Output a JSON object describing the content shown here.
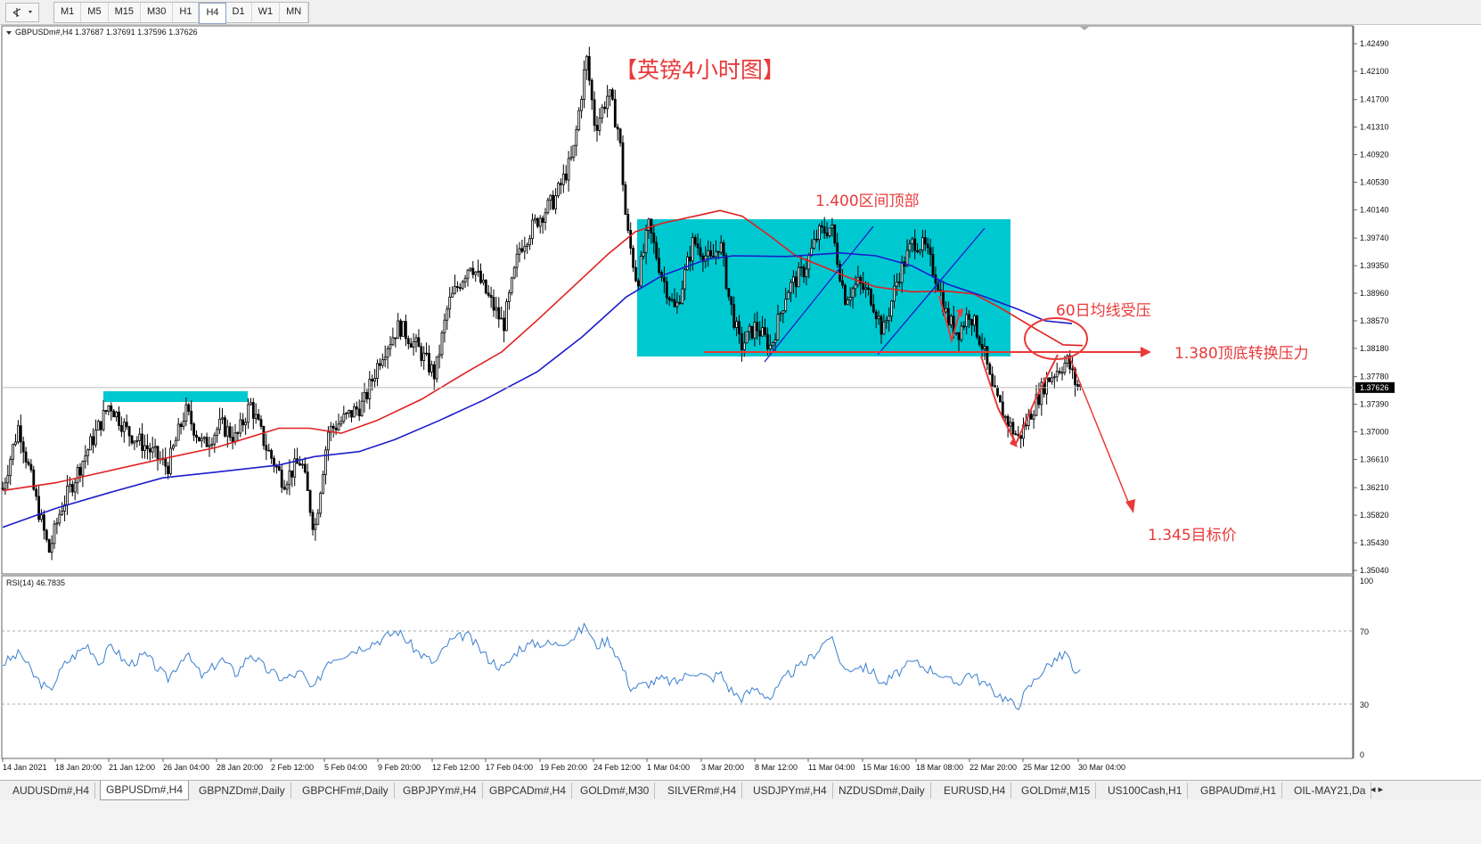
{
  "toolbar": {
    "timeframes": [
      "M1",
      "M5",
      "M15",
      "M30",
      "H1",
      "H4",
      "D1",
      "W1",
      "MN"
    ],
    "active": "H4"
  },
  "colors": {
    "candle": "#000000",
    "ma_red": "#e0201f",
    "ma_blue": "#1c1ccc",
    "box": "#00c8d0",
    "annotation_red": "#e83a3a",
    "trend_blue": "#1c1ccc",
    "rsi_line": "#3a7fd0",
    "current_price_bg": "#000000"
  },
  "header": {
    "symbol_info": "GBPUSDm#,H4  1.37687 1.37691 1.37596 1.37626"
  },
  "annotations": {
    "title": "【英镑4小时图】",
    "top_label": "1.400区间顶部",
    "ma_label": "60日均线受压",
    "resistance_label": "1.380顶底转换压力",
    "target_label": "1.345目标价"
  },
  "price_axis": {
    "labels": [
      "1.42490",
      "1.42100",
      "1.41700",
      "1.41310",
      "1.40920",
      "1.40530",
      "1.40140",
      "1.39740",
      "1.39350",
      "1.38960",
      "1.38570",
      "1.38180",
      "1.37780",
      "1.37390",
      "1.37000",
      "1.36610",
      "1.36210",
      "1.35820",
      "1.35430",
      "1.35040"
    ],
    "current_price": "1.37626"
  },
  "rsi": {
    "label": "RSI(14) 46.7835",
    "levels": [
      "100",
      "70",
      "30",
      "0"
    ]
  },
  "time_axis": {
    "labels": [
      "14 Jan 2021",
      "18 Jan 20:00",
      "21 Jan 12:00",
      "26 Jan 04:00",
      "28 Jan 20:00",
      "2 Feb 12:00",
      "5 Feb 04:00",
      "9 Feb 20:00",
      "12 Feb 12:00",
      "17 Feb 04:00",
      "19 Feb 20:00",
      "24 Feb 12:00",
      "1 Mar 04:00",
      "3 Mar 20:00",
      "8 Mar 12:00",
      "11 Mar 04:00",
      "15 Mar 16:00",
      "18 Mar 08:00",
      "22 Mar 20:00",
      "25 Mar 12:00",
      "30 Mar 04:00"
    ]
  },
  "tabs": {
    "items": [
      "AUDUSDm#,H4",
      "GBPUSDm#,H4",
      "GBPNZDm#,Daily",
      "GBPCHFm#,Daily",
      "GBPJPYm#,H4",
      "GBPCADm#,H4",
      "GOLDm#,M30",
      "SILVERm#,H4",
      "USDJPYm#,H4",
      "NZDUSDm#,Daily",
      "EURUSD,H4",
      "GOLDm#,M15",
      "US100Cash,H1",
      "GBPAUDm#,H1",
      "OIL-MAY21,Da"
    ],
    "active": "GBPUSDm#,H4"
  },
  "chart_data": {
    "type": "candlestick",
    "symbol": "GBPUSDm#",
    "timeframe": "H4",
    "last_bar": {
      "open": 1.37687,
      "high": 1.37691,
      "low": 1.37596,
      "close": 1.37626
    },
    "ylim": [
      1.3504,
      1.4249
    ],
    "path_keypoints": [
      {
        "x": 0,
        "price": 1.362
      },
      {
        "x": 18,
        "price": 1.371
      },
      {
        "x": 38,
        "price": 1.36
      },
      {
        "x": 52,
        "price": 1.353
      },
      {
        "x": 65,
        "price": 1.359
      },
      {
        "x": 90,
        "price": 1.366
      },
      {
        "x": 120,
        "price": 1.374
      },
      {
        "x": 140,
        "price": 1.37
      },
      {
        "x": 160,
        "price": 1.368
      },
      {
        "x": 185,
        "price": 1.365
      },
      {
        "x": 205,
        "price": 1.373
      },
      {
        "x": 225,
        "price": 1.368
      },
      {
        "x": 245,
        "price": 1.371
      },
      {
        "x": 262,
        "price": 1.369
      },
      {
        "x": 278,
        "price": 1.374
      },
      {
        "x": 295,
        "price": 1.368
      },
      {
        "x": 315,
        "price": 1.363
      },
      {
        "x": 335,
        "price": 1.366
      },
      {
        "x": 350,
        "price": 1.356
      },
      {
        "x": 365,
        "price": 1.37
      },
      {
        "x": 385,
        "price": 1.372
      },
      {
        "x": 405,
        "price": 1.374
      },
      {
        "x": 425,
        "price": 1.381
      },
      {
        "x": 445,
        "price": 1.385
      },
      {
        "x": 465,
        "price": 1.382
      },
      {
        "x": 485,
        "price": 1.378
      },
      {
        "x": 500,
        "price": 1.388
      },
      {
        "x": 525,
        "price": 1.394
      },
      {
        "x": 545,
        "price": 1.389
      },
      {
        "x": 562,
        "price": 1.385
      },
      {
        "x": 580,
        "price": 1.396
      },
      {
        "x": 600,
        "price": 1.4
      },
      {
        "x": 620,
        "price": 1.403
      },
      {
        "x": 640,
        "price": 1.409
      },
      {
        "x": 655,
        "price": 1.423
      },
      {
        "x": 665,
        "price": 1.413
      },
      {
        "x": 680,
        "price": 1.418
      },
      {
        "x": 692,
        "price": 1.412
      },
      {
        "x": 700,
        "price": 1.399
      },
      {
        "x": 712,
        "price": 1.391
      },
      {
        "x": 725,
        "price": 1.399
      },
      {
        "x": 740,
        "price": 1.392
      },
      {
        "x": 755,
        "price": 1.387
      },
      {
        "x": 775,
        "price": 1.397
      },
      {
        "x": 795,
        "price": 1.394
      },
      {
        "x": 805,
        "price": 1.397
      },
      {
        "x": 815,
        "price": 1.389
      },
      {
        "x": 828,
        "price": 1.382
      },
      {
        "x": 845,
        "price": 1.385
      },
      {
        "x": 862,
        "price": 1.382
      },
      {
        "x": 880,
        "price": 1.39
      },
      {
        "x": 900,
        "price": 1.393
      },
      {
        "x": 915,
        "price": 1.398
      },
      {
        "x": 930,
        "price": 1.399
      },
      {
        "x": 945,
        "price": 1.389
      },
      {
        "x": 960,
        "price": 1.391
      },
      {
        "x": 975,
        "price": 1.389
      },
      {
        "x": 988,
        "price": 1.384
      },
      {
        "x": 1005,
        "price": 1.392
      },
      {
        "x": 1022,
        "price": 1.397
      },
      {
        "x": 1035,
        "price": 1.396
      },
      {
        "x": 1050,
        "price": 1.391
      },
      {
        "x": 1060,
        "price": 1.386
      },
      {
        "x": 1072,
        "price": 1.384
      },
      {
        "x": 1085,
        "price": 1.387
      },
      {
        "x": 1100,
        "price": 1.382
      },
      {
        "x": 1110,
        "price": 1.376
      },
      {
        "x": 1125,
        "price": 1.372
      },
      {
        "x": 1140,
        "price": 1.369
      },
      {
        "x": 1155,
        "price": 1.373
      },
      {
        "x": 1170,
        "price": 1.377
      },
      {
        "x": 1185,
        "price": 1.379
      },
      {
        "x": 1195,
        "price": 1.38
      },
      {
        "x": 1205,
        "price": 1.3765
      },
      {
        "x": 1212,
        "price": 1.3763
      }
    ],
    "ma_red": [
      {
        "x": 0,
        "price": 1.3617
      },
      {
        "x": 60,
        "price": 1.3628
      },
      {
        "x": 120,
        "price": 1.3645
      },
      {
        "x": 180,
        "price": 1.3662
      },
      {
        "x": 240,
        "price": 1.3678
      },
      {
        "x": 310,
        "price": 1.3705
      },
      {
        "x": 345,
        "price": 1.3705
      },
      {
        "x": 380,
        "price": 1.3698
      },
      {
        "x": 420,
        "price": 1.3716
      },
      {
        "x": 470,
        "price": 1.3746
      },
      {
        "x": 520,
        "price": 1.3784
      },
      {
        "x": 560,
        "price": 1.3813
      },
      {
        "x": 600,
        "price": 1.3858
      },
      {
        "x": 640,
        "price": 1.3905
      },
      {
        "x": 680,
        "price": 1.3952
      },
      {
        "x": 710,
        "price": 1.3983
      },
      {
        "x": 740,
        "price": 1.3995
      },
      {
        "x": 780,
        "price": 1.4006
      },
      {
        "x": 805,
        "price": 1.4013
      },
      {
        "x": 830,
        "price": 1.4005
      },
      {
        "x": 860,
        "price": 1.3978
      },
      {
        "x": 890,
        "price": 1.3949
      },
      {
        "x": 920,
        "price": 1.3934
      },
      {
        "x": 950,
        "price": 1.3918
      },
      {
        "x": 980,
        "price": 1.3905
      },
      {
        "x": 1020,
        "price": 1.3898
      },
      {
        "x": 1060,
        "price": 1.3899
      },
      {
        "x": 1090,
        "price": 1.3895
      },
      {
        "x": 1120,
        "price": 1.3875
      },
      {
        "x": 1160,
        "price": 1.3845
      },
      {
        "x": 1190,
        "price": 1.3823
      },
      {
        "x": 1212,
        "price": 1.3822
      }
    ],
    "ma_blue": [
      {
        "x": 0,
        "price": 1.3565
      },
      {
        "x": 60,
        "price": 1.3592
      },
      {
        "x": 120,
        "price": 1.3614
      },
      {
        "x": 180,
        "price": 1.3635
      },
      {
        "x": 240,
        "price": 1.3643
      },
      {
        "x": 310,
        "price": 1.3653
      },
      {
        "x": 350,
        "price": 1.3665
      },
      {
        "x": 400,
        "price": 1.3672
      },
      {
        "x": 440,
        "price": 1.3689
      },
      {
        "x": 490,
        "price": 1.3716
      },
      {
        "x": 540,
        "price": 1.3745
      },
      {
        "x": 600,
        "price": 1.3785
      },
      {
        "x": 650,
        "price": 1.3834
      },
      {
        "x": 700,
        "price": 1.3891
      },
      {
        "x": 740,
        "price": 1.3921
      },
      {
        "x": 790,
        "price": 1.3944
      },
      {
        "x": 820,
        "price": 1.3949
      },
      {
        "x": 880,
        "price": 1.3948
      },
      {
        "x": 940,
        "price": 1.3953
      },
      {
        "x": 980,
        "price": 1.3949
      },
      {
        "x": 1020,
        "price": 1.3935
      },
      {
        "x": 1060,
        "price": 1.3909
      },
      {
        "x": 1100,
        "price": 1.3892
      },
      {
        "x": 1140,
        "price": 1.3873
      },
      {
        "x": 1170,
        "price": 1.3857
      },
      {
        "x": 1200,
        "price": 1.3853
      }
    ],
    "rsi_keypoints": [
      {
        "x": 0,
        "v": 52
      },
      {
        "x": 20,
        "v": 58
      },
      {
        "x": 35,
        "v": 45
      },
      {
        "x": 52,
        "v": 36
      },
      {
        "x": 70,
        "v": 52
      },
      {
        "x": 95,
        "v": 63
      },
      {
        "x": 110,
        "v": 52
      },
      {
        "x": 122,
        "v": 63
      },
      {
        "x": 140,
        "v": 51
      },
      {
        "x": 160,
        "v": 57
      },
      {
        "x": 185,
        "v": 43
      },
      {
        "x": 205,
        "v": 58
      },
      {
        "x": 225,
        "v": 44
      },
      {
        "x": 245,
        "v": 55
      },
      {
        "x": 262,
        "v": 46
      },
      {
        "x": 278,
        "v": 58
      },
      {
        "x": 295,
        "v": 49
      },
      {
        "x": 315,
        "v": 43
      },
      {
        "x": 335,
        "v": 47
      },
      {
        "x": 348,
        "v": 36
      },
      {
        "x": 365,
        "v": 54
      },
      {
        "x": 385,
        "v": 58
      },
      {
        "x": 405,
        "v": 62
      },
      {
        "x": 425,
        "v": 66
      },
      {
        "x": 443,
        "v": 71
      },
      {
        "x": 465,
        "v": 59
      },
      {
        "x": 485,
        "v": 52
      },
      {
        "x": 500,
        "v": 64
      },
      {
        "x": 520,
        "v": 69
      },
      {
        "x": 545,
        "v": 55
      },
      {
        "x": 562,
        "v": 49
      },
      {
        "x": 580,
        "v": 61
      },
      {
        "x": 600,
        "v": 64
      },
      {
        "x": 620,
        "v": 63
      },
      {
        "x": 640,
        "v": 67
      },
      {
        "x": 655,
        "v": 74
      },
      {
        "x": 665,
        "v": 62
      },
      {
        "x": 680,
        "v": 66
      },
      {
        "x": 692,
        "v": 54
      },
      {
        "x": 705,
        "v": 38
      },
      {
        "x": 720,
        "v": 40
      },
      {
        "x": 740,
        "v": 43
      },
      {
        "x": 755,
        "v": 41
      },
      {
        "x": 775,
        "v": 48
      },
      {
        "x": 795,
        "v": 43
      },
      {
        "x": 805,
        "v": 47
      },
      {
        "x": 815,
        "v": 38
      },
      {
        "x": 828,
        "v": 32
      },
      {
        "x": 845,
        "v": 38
      },
      {
        "x": 862,
        "v": 32
      },
      {
        "x": 880,
        "v": 45
      },
      {
        "x": 900,
        "v": 52
      },
      {
        "x": 915,
        "v": 60
      },
      {
        "x": 928,
        "v": 68
      },
      {
        "x": 945,
        "v": 48
      },
      {
        "x": 960,
        "v": 51
      },
      {
        "x": 975,
        "v": 48
      },
      {
        "x": 988,
        "v": 40
      },
      {
        "x": 1005,
        "v": 47
      },
      {
        "x": 1022,
        "v": 53
      },
      {
        "x": 1035,
        "v": 50
      },
      {
        "x": 1050,
        "v": 47
      },
      {
        "x": 1060,
        "v": 42
      },
      {
        "x": 1072,
        "v": 41
      },
      {
        "x": 1085,
        "v": 47
      },
      {
        "x": 1100,
        "v": 41
      },
      {
        "x": 1112,
        "v": 36
      },
      {
        "x": 1125,
        "v": 32
      },
      {
        "x": 1138,
        "v": 27
      },
      {
        "x": 1150,
        "v": 37
      },
      {
        "x": 1165,
        "v": 47
      },
      {
        "x": 1180,
        "v": 54
      },
      {
        "x": 1195,
        "v": 58
      },
      {
        "x": 1203,
        "v": 44
      },
      {
        "x": 1210,
        "v": 46.8
      }
    ]
  }
}
